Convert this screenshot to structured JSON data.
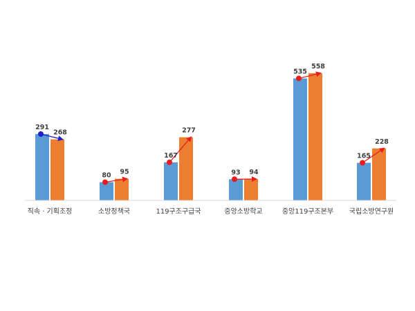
{
  "chart_data": {
    "type": "bar",
    "categories": [
      "직속 · 기획조정",
      "소방정책국",
      "119구조구급국",
      "중앙소방학교",
      "중앙119구조본부",
      "국립소방연구원"
    ],
    "series": [
      {
        "values": [
          291,
          80,
          167,
          93,
          535,
          165
        ],
        "color": "#5b9bd5"
      },
      {
        "values": [
          268,
          95,
          277,
          94,
          558,
          228
        ],
        "color": "#ed7d31"
      }
    ],
    "ylim": [
      0,
      600
    ],
    "grid": false,
    "legend": "none",
    "annotation": {
      "type": "arrow-from-series1-to-series2",
      "decrease_color": "#1f1fd0",
      "increase_color": "#e81e1e"
    }
  }
}
